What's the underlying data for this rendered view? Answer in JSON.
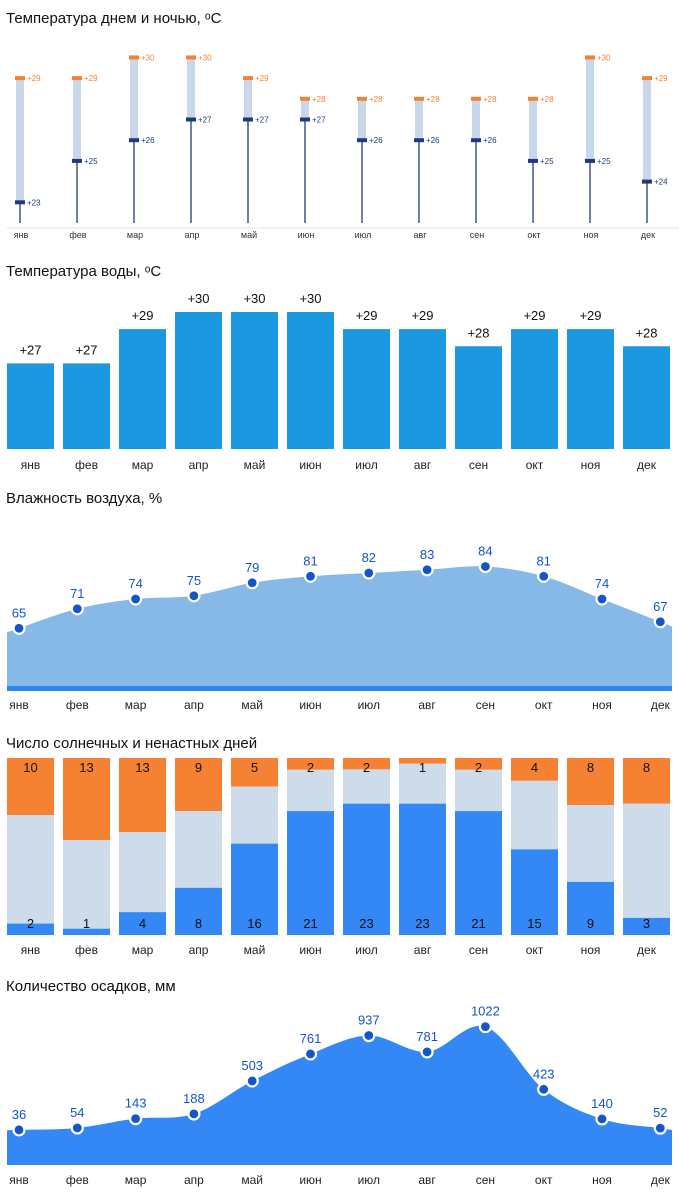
{
  "months": [
    "янв",
    "фев",
    "мар",
    "апр",
    "май",
    "июн",
    "июл",
    "авг",
    "сен",
    "окт",
    "ноя",
    "дек"
  ],
  "colors": {
    "day": "#f58232",
    "night": "#1f3a7a",
    "range": "#c8d8ea",
    "water": "#1b98e0",
    "humidity": "#86b8e8",
    "humidity_base": "#2f86f0",
    "point": "#1455cc",
    "sunny": "#3388f5",
    "cloudy": "#cddbea",
    "rainy": "#f58232",
    "precip": "#3388f5"
  },
  "chart_data": [
    {
      "id": "temperature",
      "type": "range",
      "title": "Температура днем и ночью, ᵒC",
      "categories": [
        "янв",
        "фев",
        "мар",
        "апр",
        "май",
        "июн",
        "июл",
        "авг",
        "сен",
        "окт",
        "ноя",
        "дек"
      ],
      "series": [
        {
          "values": [
            29,
            29,
            30,
            30,
            29,
            28,
            28,
            28,
            28,
            28,
            30,
            29
          ],
          "labels": [
            "+29",
            "+29",
            "+30",
            "+30",
            "+29",
            "+28",
            "+28",
            "+28",
            "+28",
            "+28",
            "+30",
            "+29"
          ]
        },
        {
          "values": [
            23,
            25,
            26,
            27,
            27,
            27,
            26,
            26,
            26,
            25,
            25,
            24
          ],
          "labels": [
            "+23",
            "+25",
            "+26",
            "+27",
            "+27",
            "+27",
            "+26",
            "+26",
            "+26",
            "+25",
            "+25",
            "+24"
          ]
        }
      ],
      "ylim": [
        22,
        30.6
      ]
    },
    {
      "id": "water",
      "type": "bar",
      "title": "Температура воды, ᵒC",
      "categories": [
        "янв",
        "фев",
        "мар",
        "апр",
        "май",
        "июн",
        "июл",
        "авг",
        "сен",
        "окт",
        "ноя",
        "дек"
      ],
      "values": [
        27,
        27,
        29,
        30,
        30,
        30,
        29,
        29,
        28,
        29,
        29,
        28
      ],
      "labels": [
        "+27",
        "+27",
        "+29",
        "+30",
        "+30",
        "+30",
        "+29",
        "+29",
        "+28",
        "+29",
        "+29",
        "+28"
      ],
      "ylim": [
        22,
        30
      ]
    },
    {
      "id": "humidity",
      "type": "area",
      "title": "Влажность воздуха, %",
      "categories": [
        "янв",
        "фев",
        "мар",
        "апр",
        "май",
        "июн",
        "июл",
        "авг",
        "сен",
        "окт",
        "ноя",
        "дек"
      ],
      "values": [
        65,
        71,
        74,
        75,
        79,
        81,
        82,
        83,
        84,
        81,
        74,
        67
      ],
      "labels": [
        "65",
        "71",
        "74",
        "75",
        "79",
        "81",
        "82",
        "83",
        "84",
        "81",
        "74",
        "67"
      ],
      "ylim": [
        46,
        90
      ]
    },
    {
      "id": "days",
      "type": "bar",
      "stacked": true,
      "title": "Число солнечных и ненастных дней",
      "categories": [
        "янв",
        "фев",
        "мар",
        "апр",
        "май",
        "июн",
        "июл",
        "авг",
        "сен",
        "окт",
        "ноя",
        "дек"
      ],
      "series": [
        {
          "values": [
            2,
            1,
            4,
            8,
            16,
            21,
            23,
            23,
            21,
            15,
            9,
            3
          ],
          "labels": [
            "2",
            "1",
            "4",
            "8",
            "16",
            "21",
            "23",
            "23",
            "21",
            "15",
            "9",
            "3"
          ]
        },
        {
          "values": [
            19,
            14,
            14,
            13,
            10,
            7,
            6,
            7,
            7,
            12,
            13,
            20
          ]
        },
        {
          "values": [
            10,
            13,
            13,
            9,
            5,
            2,
            2,
            1,
            2,
            4,
            8,
            8
          ],
          "labels": [
            "10",
            "13",
            "13",
            "9",
            "5",
            "2",
            "2",
            "1",
            "2",
            "4",
            "8",
            "8"
          ]
        }
      ]
    },
    {
      "id": "precipitation",
      "type": "area",
      "title": "Количество осадков, мм",
      "categories": [
        "янв",
        "фев",
        "мар",
        "апр",
        "май",
        "июн",
        "июл",
        "авг",
        "сен",
        "окт",
        "ноя",
        "дек"
      ],
      "values": [
        36,
        54,
        143,
        188,
        503,
        761,
        937,
        781,
        1022,
        423,
        140,
        52
      ],
      "labels": [
        "36",
        "54",
        "143",
        "188",
        "503",
        "761",
        "937",
        "781",
        "1022",
        "423",
        "140",
        "52"
      ],
      "ylim": [
        -300,
        1200
      ]
    }
  ]
}
